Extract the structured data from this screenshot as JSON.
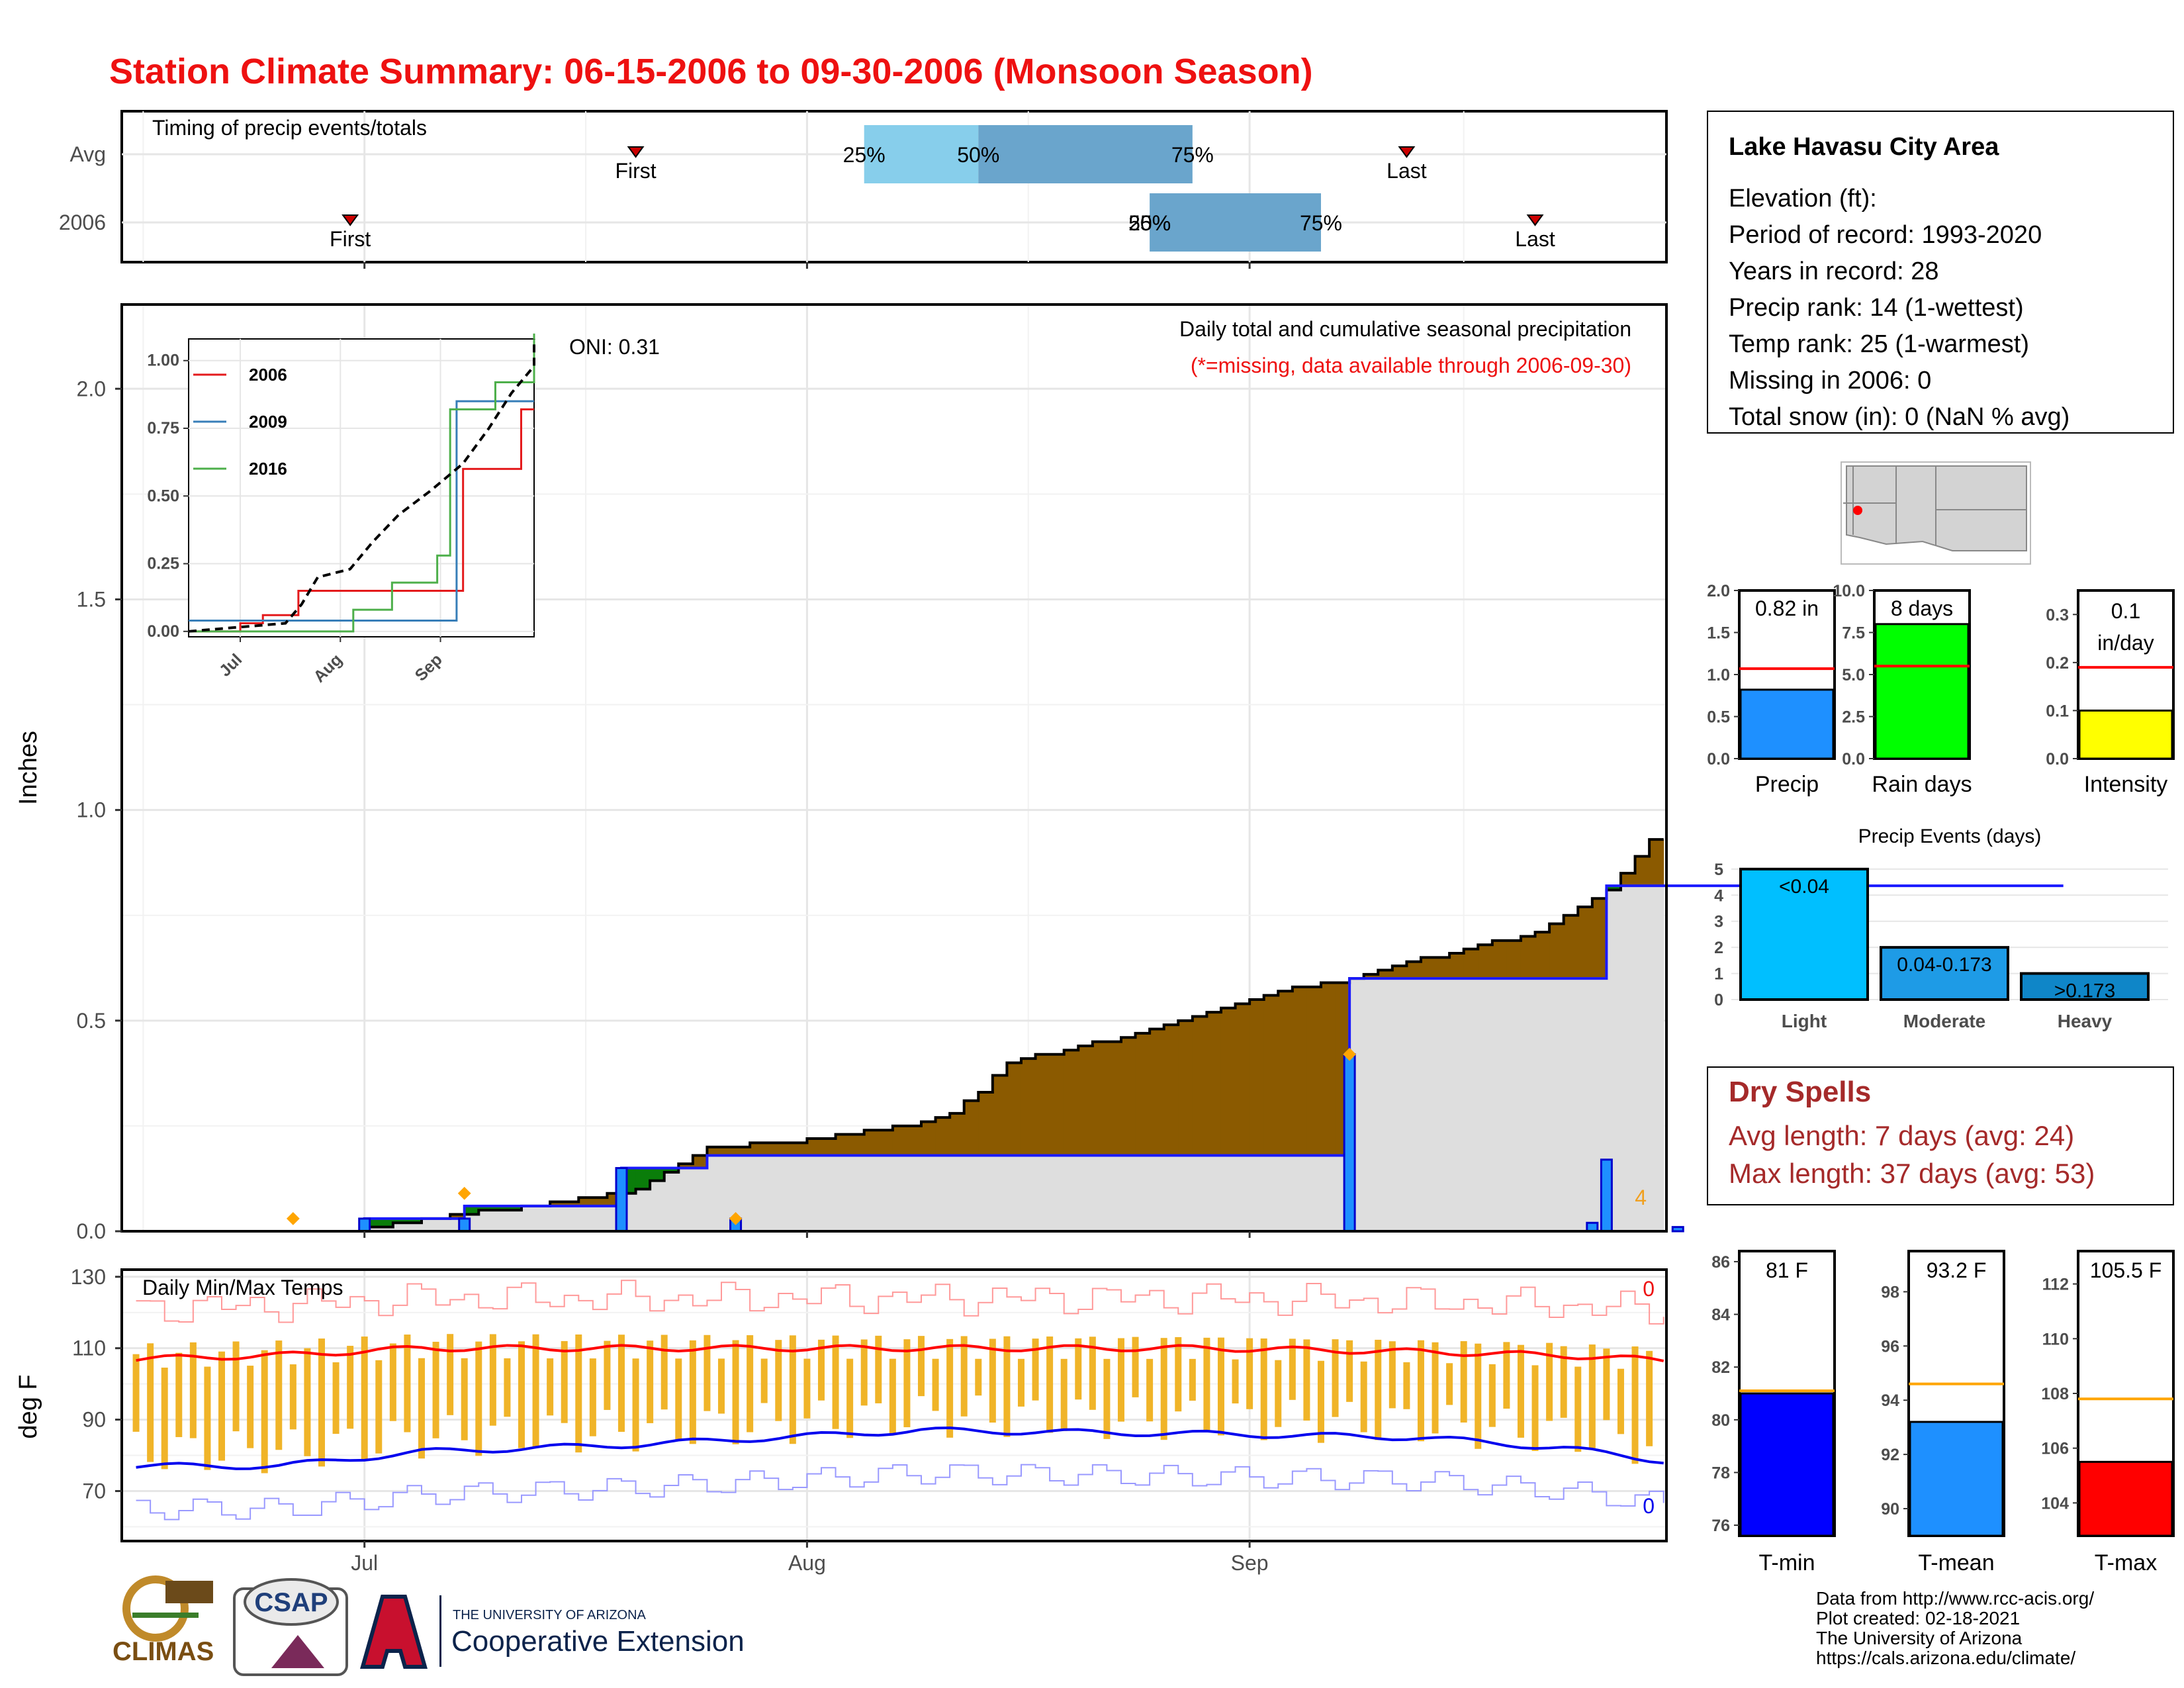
{
  "title": "Station Climate Summary: 06-15-2006 to 09-30-2006 (Monsoon Season)",
  "colors": {
    "title": "#ee1111",
    "anomaly_brown": "#8b5a00",
    "anomaly_green": "#0a7d0a",
    "daily_blue": "#1e90ff",
    "tmax_red": "#ff0000",
    "tmin_blue": "#0000ee",
    "range_orange": "#f0b428",
    "dry_spell": "#a52a2a"
  },
  "timing": {
    "title": "Timing of precip events/totals",
    "rows": [
      "Avg",
      "2006"
    ],
    "avg": {
      "first": "07-20",
      "last": "09-12",
      "q25": "08-05",
      "q50": "08-13",
      "q75": "08-28"
    },
    "y2006": {
      "first": "06-30",
      "last": "09-21",
      "q25": "08-25",
      "q50": "08-25",
      "q75": "09-06"
    },
    "labels": {
      "first": "First",
      "last": "Last",
      "p25": "25%",
      "p50": "50%",
      "p75": "75%"
    }
  },
  "precip": {
    "annotation_title": "Daily total and cumulative seasonal precipitation",
    "annotation_missing": "(*=missing, data available through 2006-09-30)",
    "oni": "ONI: 0.31",
    "ylabel": "Inches",
    "count_label": "4"
  },
  "inset": {
    "legend": [
      "2006",
      "2009",
      "2016"
    ],
    "yticks": [
      "0.00",
      "0.25",
      "0.50",
      "0.75",
      "1.00"
    ],
    "xticks": [
      "Jul",
      "Aug",
      "Sep"
    ]
  },
  "temps": {
    "title": "Daily Min/Max Temps",
    "ylabel": "deg F",
    "count_max": "0",
    "count_min": "0"
  },
  "x_axis": [
    "Jul",
    "Aug",
    "Sep"
  ],
  "station": {
    "name": "Lake Havasu City Area",
    "elevation": "Elevation (ft):",
    "period": "Period of record: 1993-2020",
    "years": "Years in record: 28",
    "precip_rank": "Precip rank: 14 (1-wettest)",
    "temp_rank": "Temp rank: 25 (1-warmest)",
    "missing": "Missing in 2006: 0",
    "snow": "Total snow (in): 0 (NaN % avg)"
  },
  "summary_bars": [
    {
      "label": "Precip",
      "value_text": "0.82 in",
      "value": 0.82,
      "avg": 1.07,
      "ymax": 2.0,
      "ticks": [
        "0.0",
        "0.5",
        "1.0",
        "1.5",
        "2.0"
      ],
      "color": "#1e90ff"
    },
    {
      "label": "Rain days",
      "value_text": "8 days",
      "value": 8,
      "avg": 5.5,
      "ymax": 10,
      "ticks": [
        "0.0",
        "2.5",
        "5.0",
        "7.5",
        "10.0"
      ],
      "color": "#00ff00"
    },
    {
      "label": "Intensity",
      "value_text": "0.1 in/day",
      "value": 0.1,
      "avg": 0.19,
      "ymax": 0.35,
      "ticks": [
        "0.0",
        "0.1",
        "0.2",
        "0.3"
      ],
      "color": "#ffff00"
    }
  ],
  "events": {
    "title": "Precip Events (days)",
    "categories": [
      "Light",
      "Moderate",
      "Heavy"
    ],
    "values": [
      5,
      2,
      1
    ],
    "labels": [
      "<0.04",
      "0.04-0.173",
      ">0.173"
    ],
    "colors": [
      "#00bfff",
      "#1e9be6",
      "#0f86c8"
    ],
    "yticks": [
      "0",
      "1",
      "2",
      "3",
      "4",
      "5"
    ]
  },
  "dry_spells": {
    "title": "Dry Spells",
    "avg": "Avg length: 7 days (avg: 24)",
    "max": "Max length: 37 days (avg: 53)"
  },
  "temp_bars": [
    {
      "label": "T-min",
      "value_text": "81 F",
      "value": 81,
      "avg": 81.1,
      "ymin": 75.6,
      "ymax": 86.4,
      "ticks": [
        "76",
        "78",
        "80",
        "82",
        "84",
        "86"
      ],
      "color": "#0000ff"
    },
    {
      "label": "T-mean",
      "value_text": "93.2 F",
      "value": 93.2,
      "avg": 94.6,
      "ymin": 89.0,
      "ymax": 99.5,
      "ticks": [
        "90",
        "92",
        "94",
        "96",
        "98"
      ],
      "color": "#1e90ff"
    },
    {
      "label": "T-max",
      "value_text": "105.5 F",
      "value": 105.5,
      "avg": 107.8,
      "ymin": 102.8,
      "ymax": 113.2,
      "ticks": [
        "104",
        "106",
        "108",
        "110",
        "112"
      ],
      "color": "#ff0000"
    }
  ],
  "footer": {
    "lines": [
      "Data from http://www.rcc-acis.org/",
      "Plot created: 02-18-2021",
      "The University of Arizona",
      "https://cals.arizona.edu/climate/"
    ],
    "logo_climas": "CLIMAS",
    "logo_csap": "CSAP",
    "ua_small": "THE UNIVERSITY OF ARIZONA",
    "ua_big": "Cooperative Extension"
  },
  "chart_data": [
    {
      "type": "line",
      "title": "Daily total and cumulative seasonal precipitation",
      "ylabel": "Inches",
      "ylim": [
        0,
        2.2
      ],
      "x_range": [
        "2006-06-15",
        "2006-09-30"
      ],
      "series": [
        {
          "values": [
            [
              15,
              0
            ],
            [
              30,
              0
            ],
            [
              35,
              0.03
            ],
            [
              40,
              0.05
            ],
            [
              45,
              0.07
            ],
            [
              50,
              0.1
            ],
            [
              55,
              0.2
            ],
            [
              60,
              0.21
            ],
            [
              65,
              0.23
            ],
            [
              70,
              0.26
            ],
            [
              72,
              0.28
            ],
            [
              74,
              0.33
            ],
            [
              76,
              0.4
            ],
            [
              80,
              0.43
            ],
            [
              85,
              0.47
            ],
            [
              90,
              0.52
            ],
            [
              95,
              0.57
            ],
            [
              100,
              0.6
            ],
            [
              103,
              0.63
            ],
            [
              108,
              0.67
            ],
            [
              113,
              0.71
            ],
            [
              118,
              0.81
            ],
            [
              121,
              0.93
            ],
            [
              126,
              0.96
            ],
            [
              131,
              1.0
            ],
            [
              136,
              1.03
            ],
            [
              140,
              1.06
            ],
            [
              150,
              1.07
            ]
          ]
        },
        {
          "name": "2006",
          "values": [
            [
              15,
              0
            ],
            [
              31,
              0.03
            ],
            [
              38,
              0.06
            ],
            [
              49,
              0.15
            ],
            [
              55,
              0.18
            ],
            [
              99,
              0.18
            ],
            [
              100,
              0.6
            ],
            [
              117,
              0.6
            ],
            [
              118,
              0.82
            ],
            [
              150,
              0.82
            ]
          ]
        }
      ],
      "daily": [
        [
          31,
          0.03
        ],
        [
          38,
          0.03
        ],
        [
          49,
          0.15
        ],
        [
          57,
          0.03
        ],
        [
          100,
          0.42
        ],
        [
          117,
          0.02
        ],
        [
          118,
          0.17
        ],
        [
          123,
          0.01
        ],
        [
          140,
          0.0
        ]
      ]
    },
    {
      "type": "line",
      "title": "Daily Min/Max Temps",
      "ylabel": "deg F",
      "ylim": [
        56,
        132
      ],
      "series": [
        {
          "name": "Avg Tmax",
          "values": [
            [
              15,
              107
            ],
            [
              25,
              108
            ],
            [
              35,
              110
            ],
            [
              50,
              110
            ],
            [
              70,
              110
            ],
            [
              90,
              110
            ],
            [
              105,
              109
            ],
            [
              115,
              108
            ],
            [
              125,
              106
            ],
            [
              140,
              101
            ],
            [
              150,
              99
            ]
          ]
        },
        {
          "name": "Avg Tmin",
          "values": [
            [
              15,
              77
            ],
            [
              25,
              77
            ],
            [
              35,
              81
            ],
            [
              50,
              83
            ],
            [
              70,
              87
            ],
            [
              90,
              86
            ],
            [
              105,
              85
            ],
            [
              115,
              82
            ],
            [
              125,
              77
            ],
            [
              140,
              72
            ],
            [
              150,
              70
            ]
          ]
        }
      ]
    },
    {
      "type": "line",
      "title": "Inset cumulative precipitation",
      "series": [
        {
          "name": "2006",
          "values": [
            [
              15,
              0.0
            ],
            [
              31,
              0.03
            ],
            [
              38,
              0.06
            ],
            [
              49,
              0.15
            ],
            [
              100,
              0.6
            ],
            [
              118,
              0.82
            ],
            [
              140,
              0.82
            ]
          ]
        },
        {
          "name": "2009",
          "values": [
            [
              15,
              0.04
            ],
            [
              95,
              0.04
            ],
            [
              98,
              0.85
            ],
            [
              140,
              0.85
            ]
          ]
        },
        {
          "name": "2016",
          "values": [
            [
              15,
              0
            ],
            [
              61,
              0
            ],
            [
              66,
              0.08
            ],
            [
              78,
              0.18
            ],
            [
              92,
              0.28
            ],
            [
              96,
              0.82
            ],
            [
              110,
              0.92
            ],
            [
              132,
              1.0
            ],
            [
              140,
              1.1
            ]
          ]
        }
      ]
    }
  ]
}
